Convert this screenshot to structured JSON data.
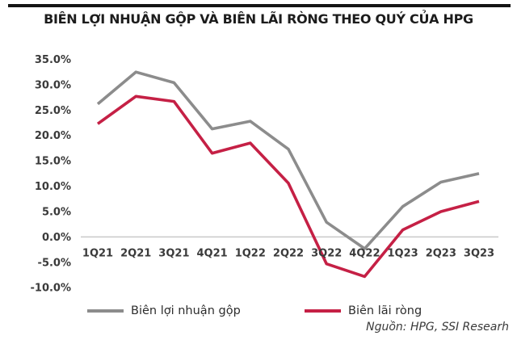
{
  "page": {
    "title": "BIÊN LỢI NHUẬN GỘP VÀ BIÊN LÃI RÒNG THEO QUÝ CỦA HPG",
    "source_note": "Nguồn: HPG, SSI Researh"
  },
  "colors": {
    "gross_line": "#8c8c8c",
    "net_line": "#c52045",
    "zero_axis_line": "#c9c9c9",
    "tick_text": "#3a3a3a",
    "title_text": "#1c1c1c",
    "top_rule": "#141414"
  },
  "chart_data": {
    "type": "line",
    "title": "BIÊN LỢI NHUẬN GỘP VÀ BIÊN LÃI RÒNG THEO QUÝ CỦA HPG",
    "categories": [
      "1Q21",
      "2Q21",
      "3Q21",
      "4Q21",
      "1Q22",
      "2Q22",
      "3Q22",
      "4Q22",
      "1Q23",
      "2Q23",
      "3Q23"
    ],
    "series": [
      {
        "name": "Biên lợi nhuận gộp",
        "color": "#8c8c8c",
        "values": [
          26.2,
          32.5,
          30.4,
          21.3,
          22.8,
          17.3,
          2.9,
          -2.3,
          6.0,
          10.8,
          12.5
        ]
      },
      {
        "name": "Biên lãi ròng",
        "color": "#c52045",
        "values": [
          22.3,
          27.7,
          26.7,
          16.5,
          18.5,
          10.6,
          -5.3,
          -7.8,
          1.4,
          5.0,
          7.0
        ]
      }
    ],
    "y_ticks": [
      "35.0%",
      "30.0%",
      "25.0%",
      "20.0%",
      "15.0%",
      "10.0%",
      "5.0%",
      "0.0%",
      "-5.0%",
      "-10.0%"
    ],
    "y_tick_values": [
      35,
      30,
      25,
      20,
      15,
      10,
      5,
      0,
      -5,
      -10
    ],
    "ylim": [
      -10,
      35
    ],
    "xlabel": "",
    "ylabel": "",
    "grid": "zero-line-only",
    "legend_position": "bottom",
    "unit": "percent"
  }
}
